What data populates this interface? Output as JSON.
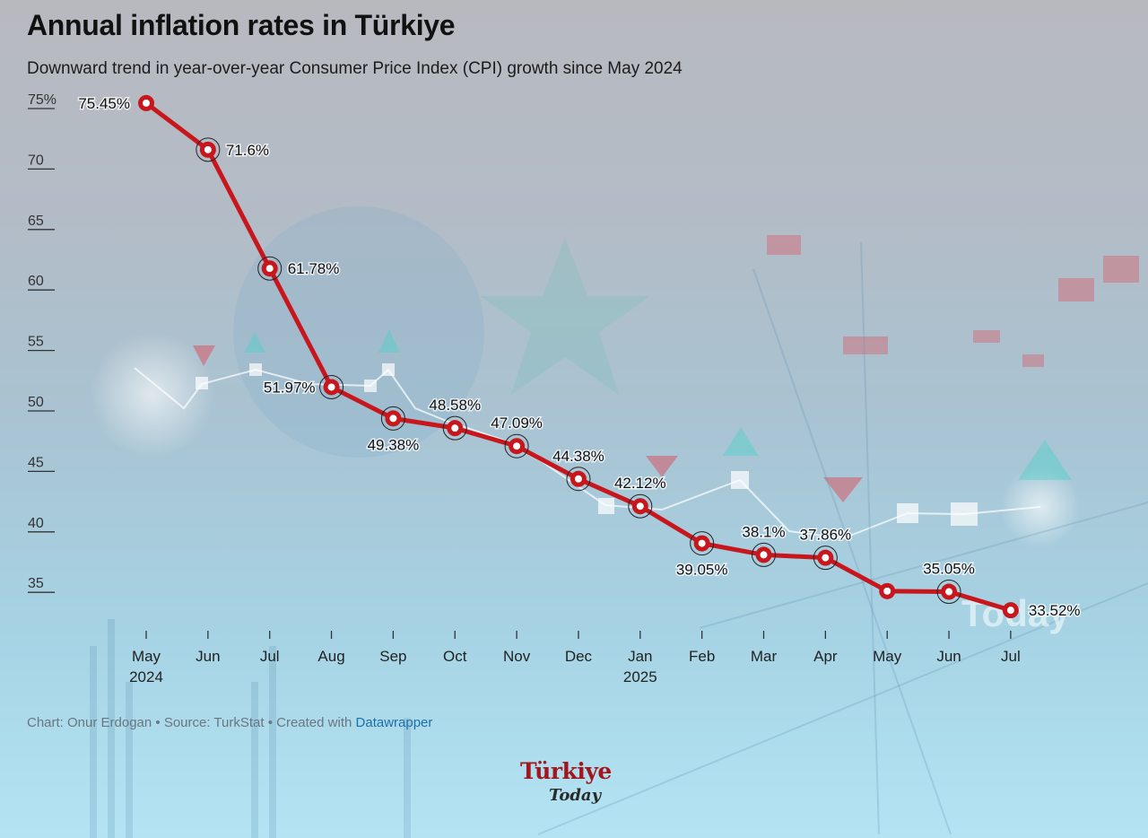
{
  "title": "Annual inflation rates in Türkiye",
  "subtitle": "Downward trend in year-over-year Consumer Price Index (CPI) growth since May 2024",
  "footer": {
    "credit": "Chart: Onur Erdogan • Source: TurkStat • Created with ",
    "link": "Datawrapper"
  },
  "logo": {
    "main": "Türkiye",
    "sub": "Today"
  },
  "watermark": "Today",
  "colors": {
    "line": "#c8161d",
    "text": "#111111",
    "axis": "#333333"
  },
  "chart_data": {
    "type": "line",
    "title": "Annual inflation rates in Türkiye",
    "xlabel": "",
    "ylabel": "",
    "ylim": [
      30,
      75
    ],
    "yticks": [
      75,
      70,
      65,
      60,
      55,
      50,
      45,
      40,
      35
    ],
    "ytick_labels": [
      "75%",
      "70",
      "65",
      "60",
      "55",
      "50",
      "45",
      "40",
      "35"
    ],
    "grid": false,
    "categories": [
      [
        "May",
        "2024"
      ],
      [
        "Jun"
      ],
      [
        "Jul"
      ],
      [
        "Aug"
      ],
      [
        "Sep"
      ],
      [
        "Oct"
      ],
      [
        "Nov"
      ],
      [
        "Dec"
      ],
      [
        "Jan",
        "2025"
      ],
      [
        "Feb"
      ],
      [
        "Mar"
      ],
      [
        "Apr"
      ],
      [
        "May"
      ],
      [
        "Jun"
      ],
      [
        "Jul"
      ]
    ],
    "values": [
      75.45,
      71.6,
      61.78,
      51.97,
      49.38,
      48.58,
      47.09,
      44.38,
      42.12,
      39.05,
      38.1,
      37.86,
      35.1,
      35.05,
      33.52
    ],
    "labels": [
      "75.45%",
      "71.6%",
      "61.78%",
      "51.97%",
      "49.38%",
      "48.58%",
      "47.09%",
      "44.38%",
      "42.12%",
      "39.05%",
      "38.1%",
      "37.86%",
      "",
      "35.05%",
      "33.52%"
    ],
    "label_pos": [
      "left",
      "right",
      "right",
      "left",
      "below",
      "above",
      "above",
      "above",
      "above",
      "below",
      "above",
      "above",
      "none",
      "above",
      "right"
    ],
    "highlighted": [
      false,
      true,
      true,
      true,
      true,
      true,
      true,
      true,
      true,
      true,
      true,
      true,
      false,
      true,
      false
    ]
  }
}
